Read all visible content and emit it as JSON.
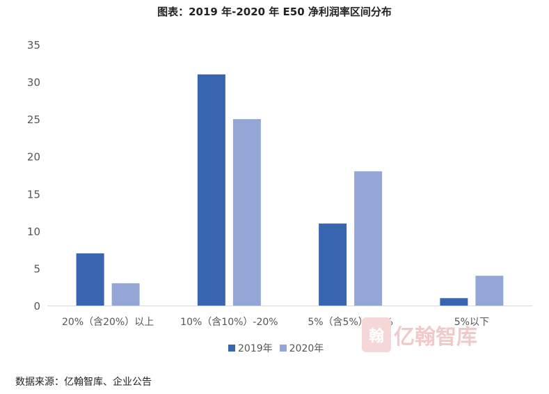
{
  "chart_data": {
    "type": "bar",
    "title": "图表：2019 年-2020 年 E50 净利润率区间分布",
    "categories": [
      "20%（含20%）以上",
      "10%（含10%）-20%",
      "5%（含5%）-10%",
      "5%以下"
    ],
    "series": [
      {
        "name": "2019年",
        "values": [
          7,
          31,
          11,
          1
        ],
        "color": "#3865b0"
      },
      {
        "name": "2020年",
        "values": [
          3,
          25,
          18,
          4
        ],
        "color": "#93a6d6"
      }
    ],
    "xlabel": "",
    "ylabel": "",
    "ylim": [
      0,
      35
    ],
    "yticks": [
      0,
      5,
      10,
      15,
      20,
      25,
      30,
      35
    ],
    "grid": false,
    "legend": "bottom"
  },
  "source": "数据来源：亿翰智库、企业公告",
  "watermark": {
    "text": "亿翰智库",
    "logo_text": "翰"
  }
}
